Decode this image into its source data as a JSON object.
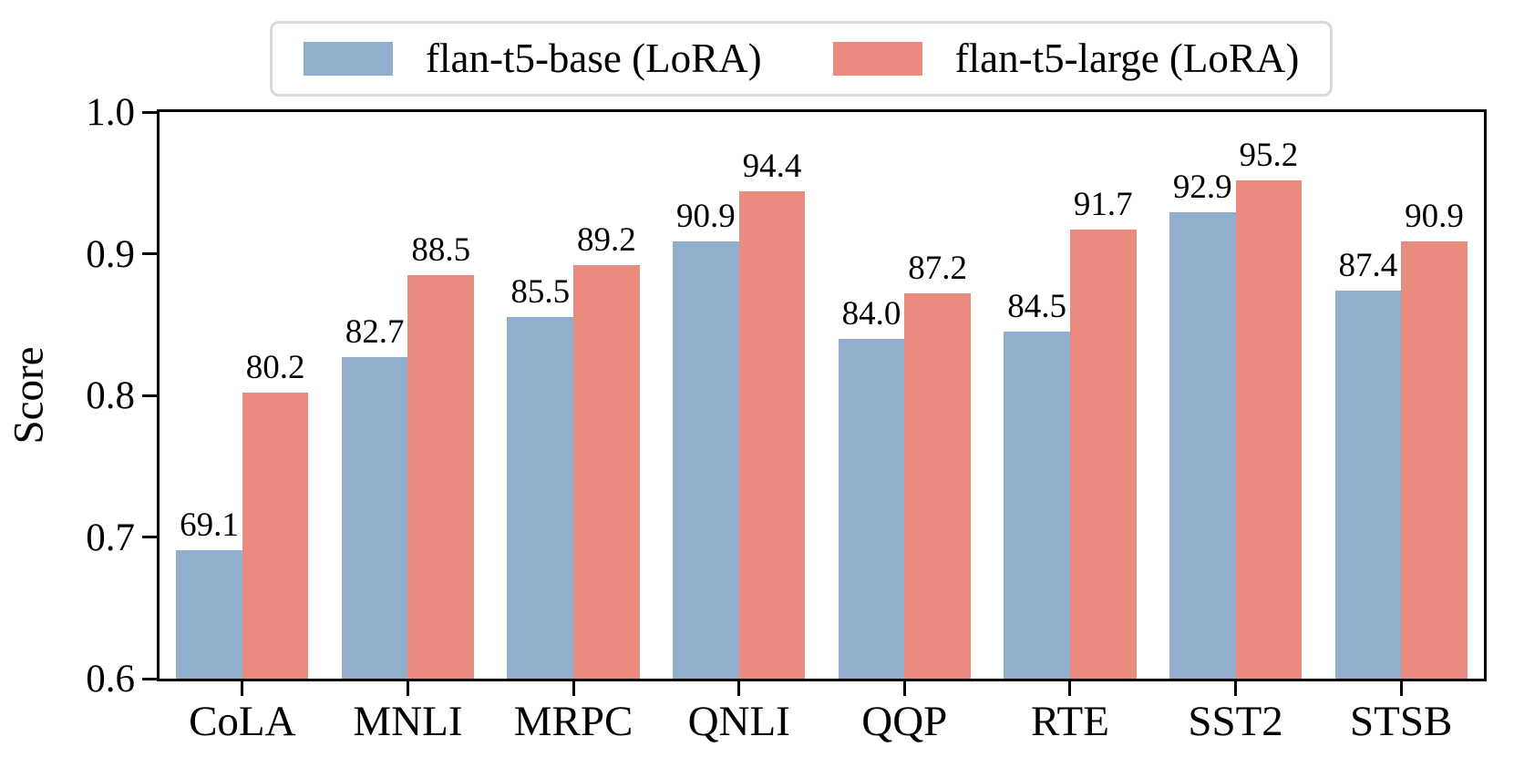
{
  "chart_data": {
    "type": "bar",
    "title": "",
    "ylabel": "Score",
    "xlabel": "",
    "ylim": [
      0.6,
      1.0
    ],
    "yticks": [
      "0.6",
      "0.7",
      "0.8",
      "0.9",
      "1.0"
    ],
    "grid": false,
    "legend_position": "top-center",
    "categories": [
      "CoLA",
      "MNLI",
      "MRPC",
      "QNLI",
      "QQP",
      "RTE",
      "SST2",
      "STSB"
    ],
    "series": [
      {
        "name": "flan-t5-base (LoRA)",
        "color": "#91afcc",
        "values": [
          69.1,
          82.7,
          85.5,
          90.9,
          84.0,
          84.5,
          92.9,
          87.4
        ],
        "value_labels": [
          "69.1",
          "82.7",
          "85.5",
          "90.9",
          "84.0",
          "84.5",
          "92.9",
          "87.4"
        ]
      },
      {
        "name": "flan-t5-large (LoRA)",
        "color": "#e98b7e",
        "values": [
          80.2,
          88.5,
          89.2,
          94.4,
          87.2,
          91.7,
          95.2,
          90.9
        ],
        "value_labels": [
          "80.2",
          "88.5",
          "89.2",
          "94.4",
          "87.2",
          "91.7",
          "95.2",
          "90.9"
        ]
      }
    ],
    "colors": {
      "axis": "#000000",
      "legend_border": "#d9d9d9",
      "background": "#ffffff",
      "text": "#000000"
    }
  }
}
